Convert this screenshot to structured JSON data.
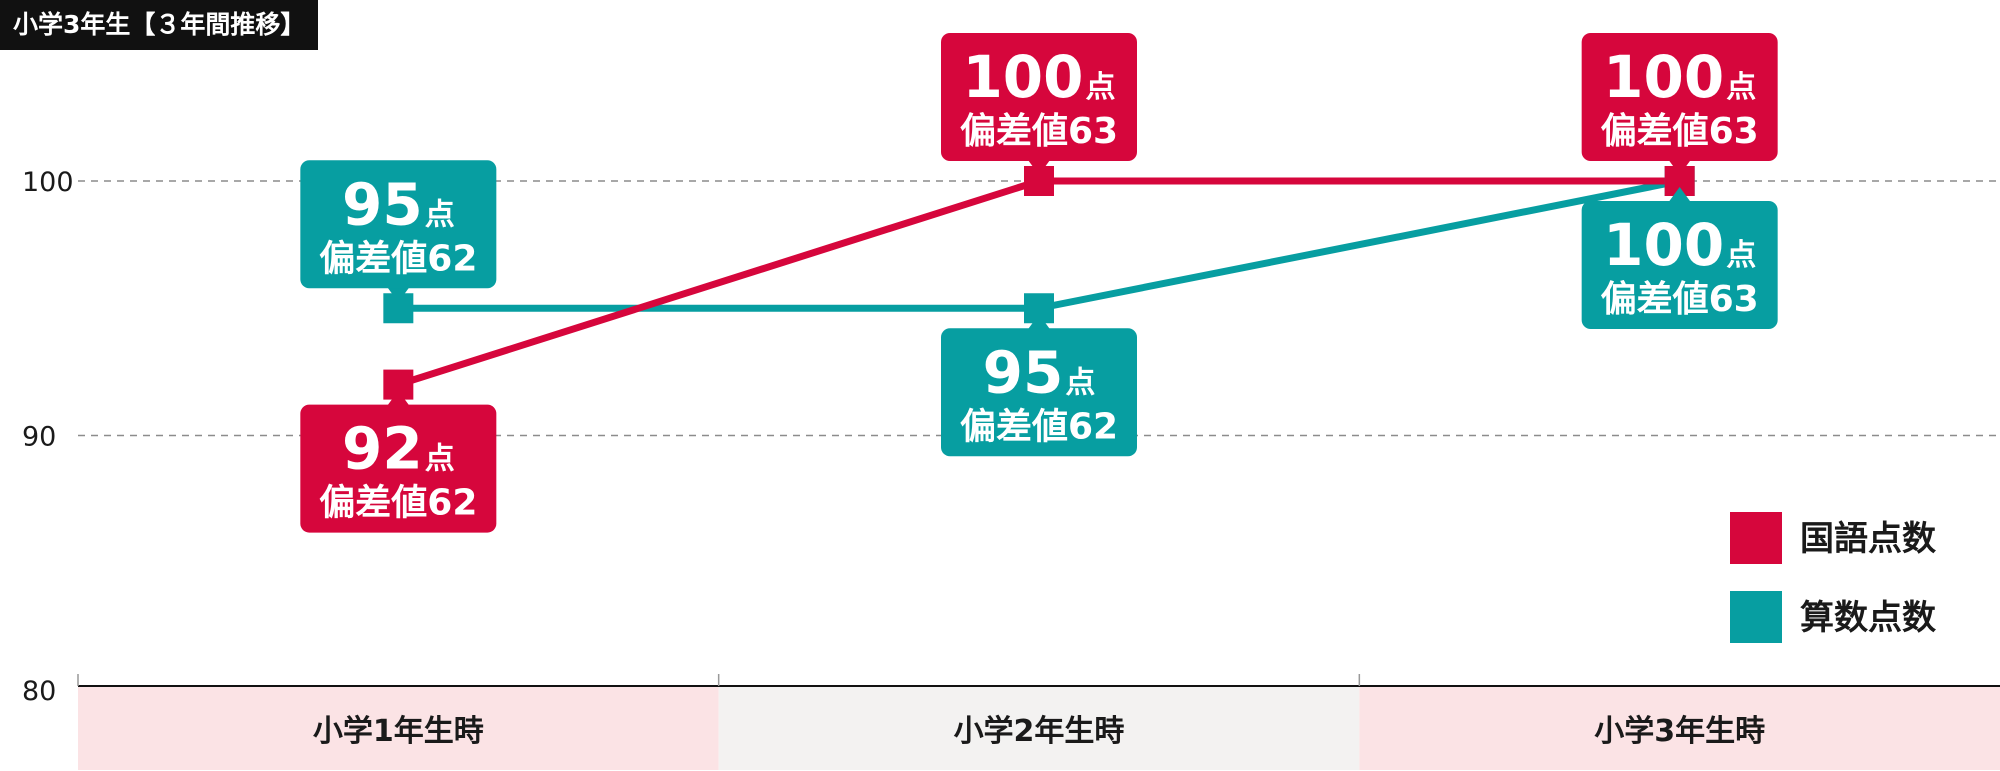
{
  "title": "小学3年生【３年間推移】",
  "colors": {
    "red": "#D6063C",
    "teal": "#079EA1",
    "axis": "#111111",
    "grid": "#8C8C8C",
    "band_pink": "#FBE3E5",
    "band_gray": "#F3F2F1"
  },
  "chart_data": {
    "type": "line",
    "categories": [
      "小学1年生時",
      "小学2年生時",
      "小学3年生時"
    ],
    "ylim": [
      80,
      103
    ],
    "yticks": [
      "80",
      "90",
      "100"
    ],
    "grid": true,
    "legend_position": "right",
    "series": [
      {
        "name": "国語点数",
        "color": "#D6063C",
        "values": [
          92,
          100,
          100
        ],
        "labels": [
          {
            "score": "92",
            "unit": "点",
            "deviation": "偏差値62",
            "placement": "below"
          },
          {
            "score": "100",
            "unit": "点",
            "deviation": "偏差値63",
            "placement": "above"
          },
          {
            "score": "100",
            "unit": "点",
            "deviation": "偏差値63",
            "placement": "above"
          }
        ]
      },
      {
        "name": "算数点数",
        "color": "#079EA1",
        "values": [
          95,
          95,
          100
        ],
        "labels": [
          {
            "score": "95",
            "unit": "点",
            "deviation": "偏差値62",
            "placement": "above"
          },
          {
            "score": "95",
            "unit": "点",
            "deviation": "偏差値62",
            "placement": "below"
          },
          {
            "score": "100",
            "unit": "点",
            "deviation": "偏差値63",
            "placement": "below"
          }
        ]
      }
    ]
  }
}
